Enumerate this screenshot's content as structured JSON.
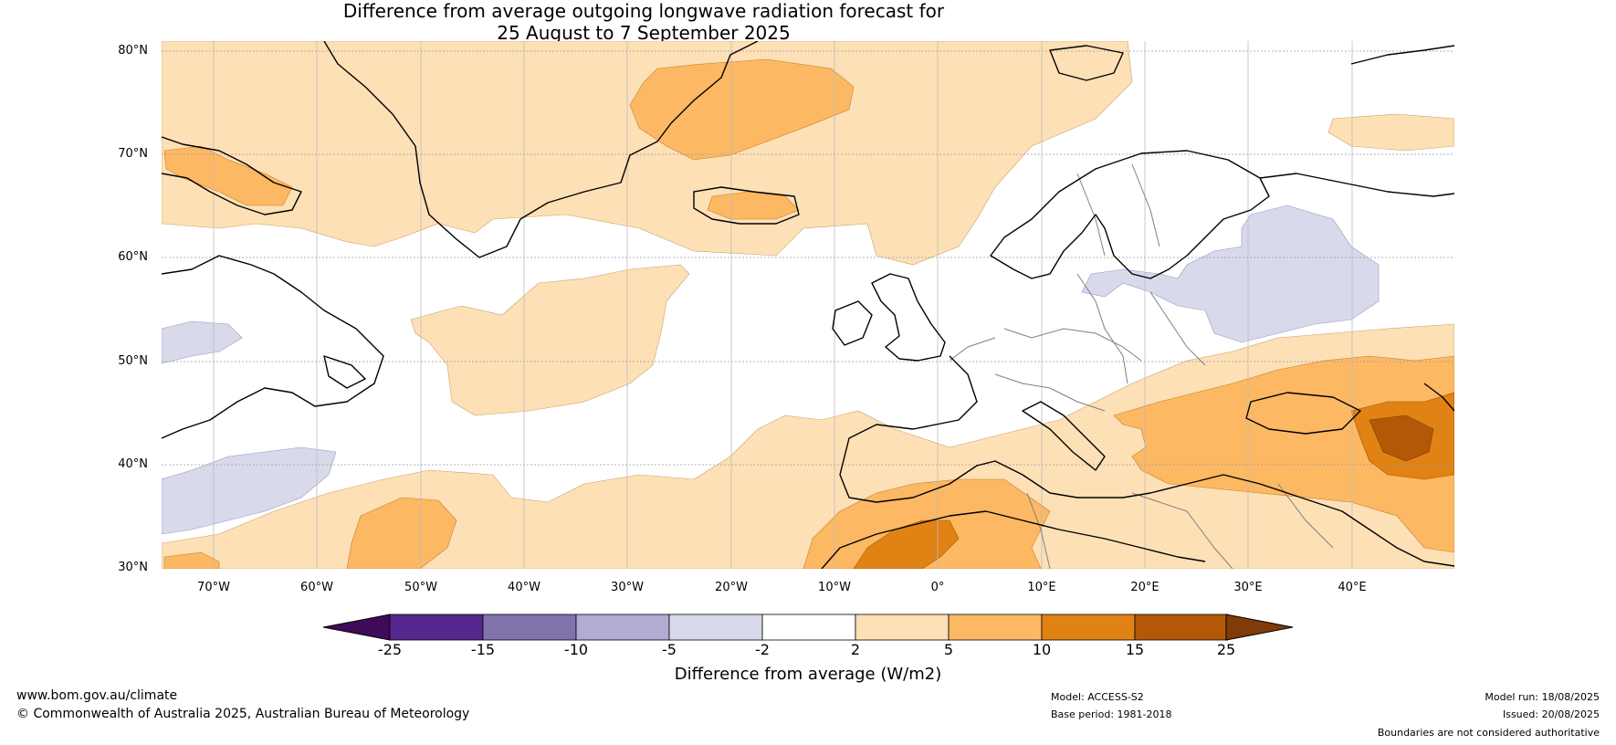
{
  "title": {
    "line1": "Difference from average outgoing longwave radiation forecast for",
    "line2": "25 August to 7 September 2025"
  },
  "map": {
    "projection": "equirectangular",
    "lon_range": [
      -75,
      50
    ],
    "lat_range": [
      30,
      81
    ],
    "background_color": "#ffffff",
    "coastline_color": "#000000",
    "border_color": "#808080",
    "grid_style": "dotted latitudes, solid longitudes",
    "lat_labels": [
      "80°N",
      "70°N",
      "60°N",
      "50°N",
      "40°N",
      "30°N"
    ],
    "lon_labels": [
      "70°W",
      "60°W",
      "50°W",
      "40°W",
      "30°W",
      "20°W",
      "10°W",
      "0°",
      "10°E",
      "20°E",
      "30°E",
      "40°E"
    ],
    "anomaly_regions": [
      {
        "category": "+2 to +5",
        "area": "Greenland, Arctic Ocean north of 70°N"
      },
      {
        "category": "+5 to +10",
        "area": "Greenland Sea, east Greenland coast"
      },
      {
        "category": "+2 to +5",
        "area": "central North Atlantic 45–55°N, 50–20°W"
      },
      {
        "category": "+2 to +5",
        "area": "subtropical Atlantic and North Africa 30–40°N"
      },
      {
        "category": "+5 to +10",
        "area": "Morocco, Algeria, eastern Mediterranean, Turkey, Caspian region"
      },
      {
        "category": "+10 to +15",
        "area": "Morocco/Algeria interior, Caucasus"
      },
      {
        "category": "+15 to +25",
        "area": "Caucasus core"
      },
      {
        "category": "-5 to -2",
        "area": "western Russia, Belarus, Baltic"
      },
      {
        "category": "-5 to -2",
        "area": "Labrador coast, subtropical western Atlantic"
      }
    ]
  },
  "colorbar": {
    "title": "Difference from average (W/m2)",
    "ticks": [
      "-25",
      "-15",
      "-10",
      "-5",
      "-2",
      "2",
      "5",
      "10",
      "15",
      "25"
    ],
    "colors": [
      "#3f0a59",
      "#54278f",
      "#8073ac",
      "#b2abd2",
      "#d8daeb",
      "#ffffff",
      "#fee0b6",
      "#fdb863",
      "#e08214",
      "#b35806",
      "#7f3b08"
    ]
  },
  "footer": {
    "website": "www.bom.gov.au/climate",
    "copyright": "© Commonwealth of Australia 2025, Australian Bureau of Meteorology",
    "model": "Model: ACCESS-S2",
    "base_period": "Base period: 1981-2018",
    "model_run": "Model run: 18/08/2025",
    "issued": "Issued: 20/08/2025",
    "disclaimer": "Boundaries are not considered authoritative"
  }
}
